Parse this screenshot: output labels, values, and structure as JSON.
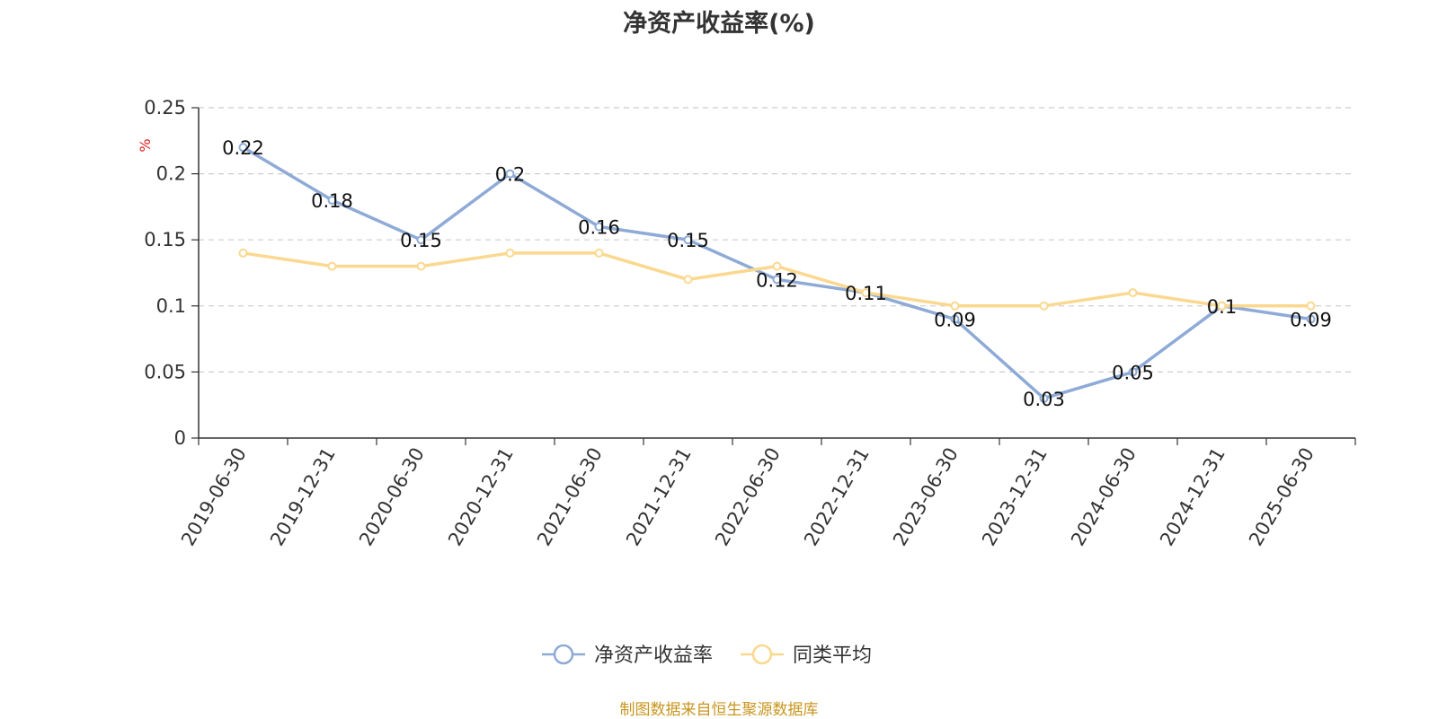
{
  "chart_data": {
    "type": "line",
    "title": "净资产收益率(%)",
    "ylabel": "%",
    "xlabel": "",
    "categories": [
      "2019-06-30",
      "2019-12-31",
      "2020-06-30",
      "2020-12-31",
      "2021-06-30",
      "2021-12-31",
      "2022-06-30",
      "2022-12-31",
      "2023-06-30",
      "2023-12-31",
      "2024-06-30",
      "2024-12-31",
      "2025-06-30"
    ],
    "series": [
      {
        "name": "净资产收益率",
        "values": [
          0.22,
          0.18,
          0.15,
          0.2,
          0.16,
          0.15,
          0.12,
          0.11,
          0.09,
          0.03,
          0.05,
          0.1,
          0.09
        ],
        "color": "#8eaad6",
        "show_labels": true
      },
      {
        "name": "同类平均",
        "values": [
          0.14,
          0.13,
          0.13,
          0.14,
          0.14,
          0.12,
          0.13,
          0.11,
          0.1,
          0.1,
          0.11,
          0.1,
          0.1
        ],
        "color": "#fbd88f",
        "show_labels": false
      }
    ],
    "ylim": [
      0,
      0.25
    ],
    "yticks": [
      "0",
      "0.05",
      "0.1",
      "0.15",
      "0.2",
      "0.25"
    ],
    "grid": true,
    "legend_position": "bottom-center",
    "unit_color": "#e02020"
  },
  "footer": {
    "source": "制图数据来自恒生聚源数据库"
  }
}
